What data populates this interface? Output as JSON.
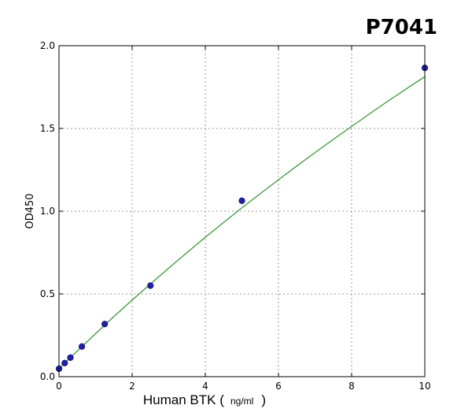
{
  "chart_data": {
    "type": "scatter",
    "title": "P7041",
    "xlabel": "Human BTK (",
    "xlabel_unit": "ng/ml",
    "xlabel_close": ")",
    "ylabel": "OD450",
    "xlim": [
      0,
      10
    ],
    "ylim": [
      0,
      2.0
    ],
    "x_ticks": [
      "0",
      "2",
      "4",
      "6",
      "8",
      "10"
    ],
    "y_ticks": [
      "0.0",
      "0.5",
      "1.0",
      "1.5",
      "2.0"
    ],
    "grid": true,
    "series": [
      {
        "kind": "points",
        "color": "#1f1fa8",
        "x": [
          0,
          0.156,
          0.312,
          0.625,
          1.25,
          2.5,
          5,
          10
        ],
        "y": [
          0.048,
          0.082,
          0.115,
          0.182,
          0.318,
          0.55,
          1.063,
          1.866
        ]
      },
      {
        "kind": "fit-curve",
        "color": "#3a9a3a",
        "x": [
          0,
          0.5,
          1,
          1.5,
          2,
          2.5,
          3,
          3.5,
          4,
          4.5,
          5,
          5.5,
          6,
          6.5,
          7,
          7.5,
          8,
          8.5,
          9,
          9.5,
          10
        ],
        "y": [
          0.048,
          0.155,
          0.26,
          0.363,
          0.463,
          0.56,
          0.656,
          0.75,
          0.842,
          0.932,
          1.02,
          1.106,
          1.19,
          1.273,
          1.354,
          1.434,
          1.512,
          1.59,
          1.666,
          1.74,
          1.813
        ]
      }
    ]
  }
}
